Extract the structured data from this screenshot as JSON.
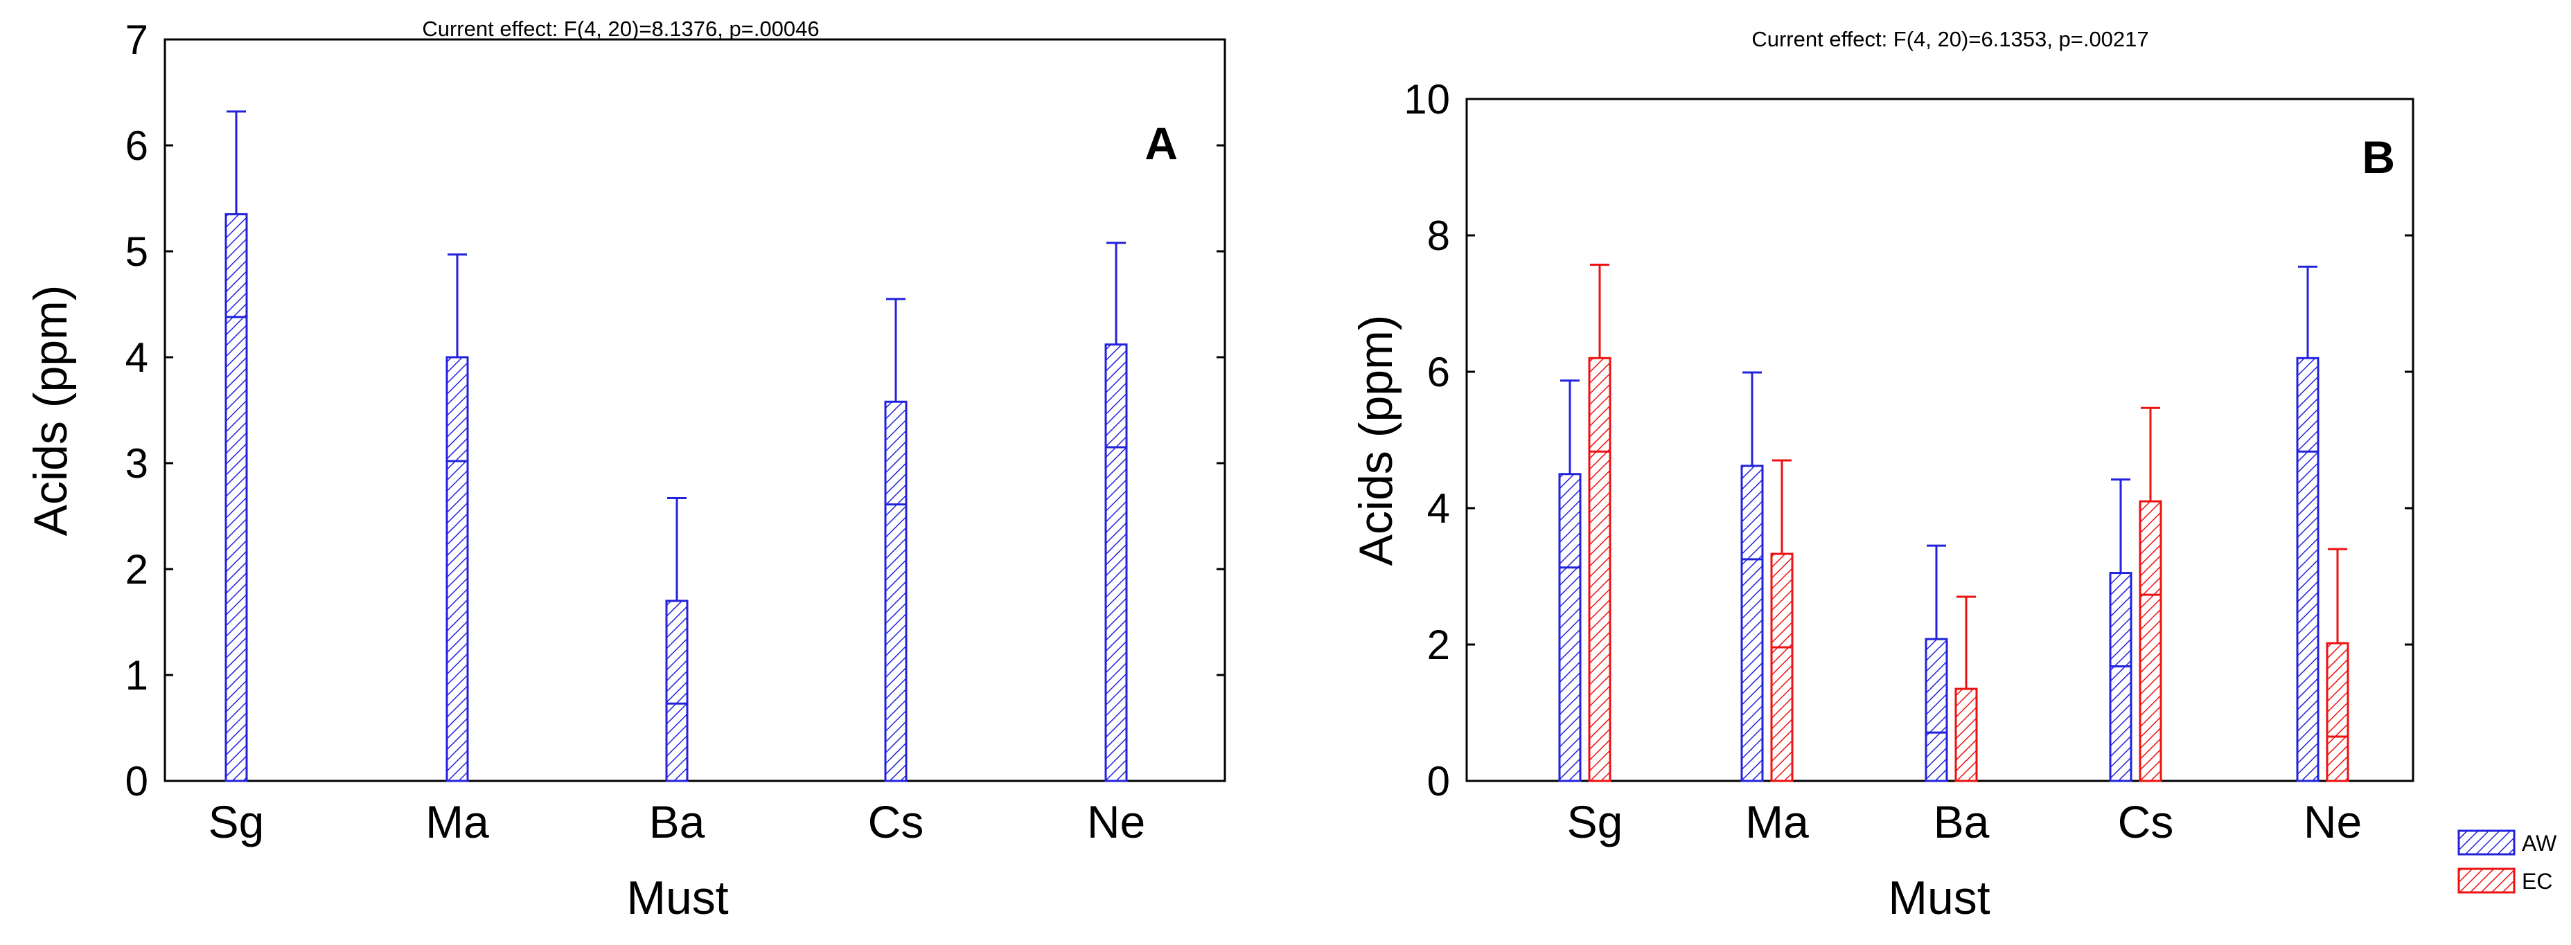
{
  "chart_data": [
    {
      "type": "bar",
      "panel_label": "A",
      "title": "Current effect: F(4, 20)=8.1376, p=.00046",
      "xlabel": "Must",
      "ylabel": "Acids (ppm)",
      "ylim": [
        0,
        7
      ],
      "yticks": [
        "0",
        "1",
        "2",
        "3",
        "4",
        "5",
        "6",
        "7"
      ],
      "categories": [
        "Sg",
        "Ma",
        "Ba",
        "Cs",
        "Ne"
      ],
      "series": [
        {
          "name": "",
          "color": "#2222dd",
          "values": [
            5.35,
            4.0,
            1.7,
            3.58,
            4.12
          ],
          "lower": [
            4.38,
            3.02,
            0.73,
            2.61,
            3.15
          ],
          "upper": [
            6.32,
            4.97,
            2.67,
            4.55,
            5.08
          ]
        }
      ]
    },
    {
      "type": "bar",
      "panel_label": "B",
      "title": "Current effect: F(4, 20)=6.1353, p=.00217",
      "xlabel": "Must",
      "ylabel": "Acids (ppm)",
      "ylim": [
        0,
        10
      ],
      "yticks": [
        "0",
        "2",
        "4",
        "6",
        "8",
        "10"
      ],
      "categories": [
        "Sg",
        "Ma",
        "Ba",
        "Cs",
        "Ne"
      ],
      "legend_position": "bottom-right-outside",
      "series": [
        {
          "name": "AW",
          "color": "#2222dd",
          "values": [
            4.5,
            4.62,
            2.08,
            3.05,
            6.2
          ],
          "lower": [
            3.13,
            3.25,
            0.71,
            1.68,
            4.83
          ],
          "upper": [
            5.87,
            5.99,
            3.45,
            4.42,
            7.54
          ]
        },
        {
          "name": "EC",
          "color": "#ee1111",
          "values": [
            6.2,
            3.33,
            1.35,
            4.1,
            2.02
          ],
          "lower": [
            4.83,
            1.96,
            0.0,
            2.73,
            0.65
          ],
          "upper": [
            7.57,
            4.7,
            2.7,
            5.47,
            3.4
          ]
        }
      ]
    }
  ]
}
